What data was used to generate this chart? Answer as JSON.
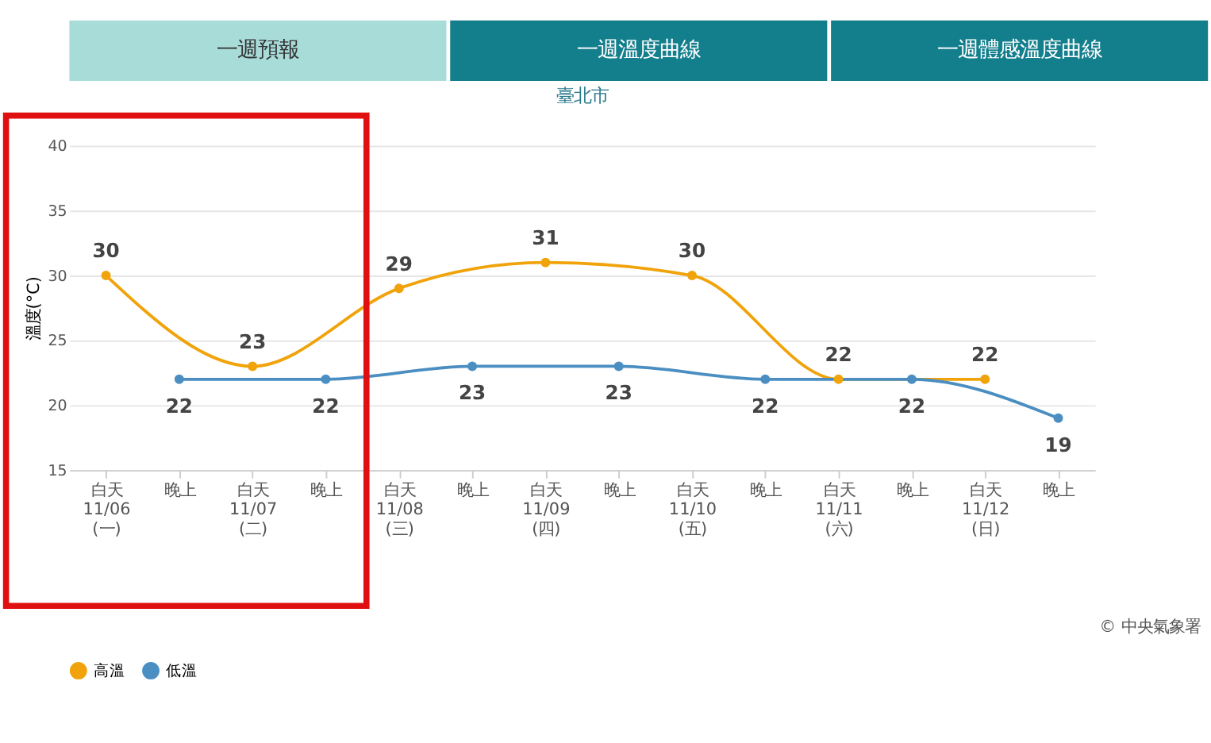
{
  "chart_data": {
    "type": "line",
    "title": "臺北市",
    "ylabel": "溫度(°C)",
    "categories": [
      "白天\n11/06\n(一)",
      "晚上",
      "白天\n11/07\n(二)",
      "晚上",
      "白天\n11/08\n(三)",
      "晚上",
      "白天\n11/09\n(四)",
      "晚上",
      "白天\n11/10\n(五)",
      "晚上",
      "白天\n11/11\n(六)",
      "晚上",
      "白天\n11/12\n(日)",
      "晚上"
    ],
    "series": [
      {
        "name": "高溫",
        "color": "#f0a30a",
        "values": [
          30,
          null,
          23,
          null,
          29,
          null,
          31,
          null,
          30,
          null,
          22,
          null,
          22,
          null
        ]
      },
      {
        "name": "低溫",
        "color": "#4a8ec2",
        "values": [
          null,
          22,
          null,
          22,
          null,
          23,
          null,
          23,
          null,
          22,
          null,
          22,
          null,
          19
        ]
      }
    ],
    "ylim": [
      15,
      40
    ],
    "yticks": [
      15,
      20,
      25,
      30,
      35,
      40
    ],
    "grid": "y",
    "legend": "bottom",
    "marker": "circle",
    "data_labels": true,
    "annotations": [
      "一週預報",
      "一週溫度曲線",
      "一週體感溫度曲線",
      "© 中央氣象署"
    ]
  }
}
